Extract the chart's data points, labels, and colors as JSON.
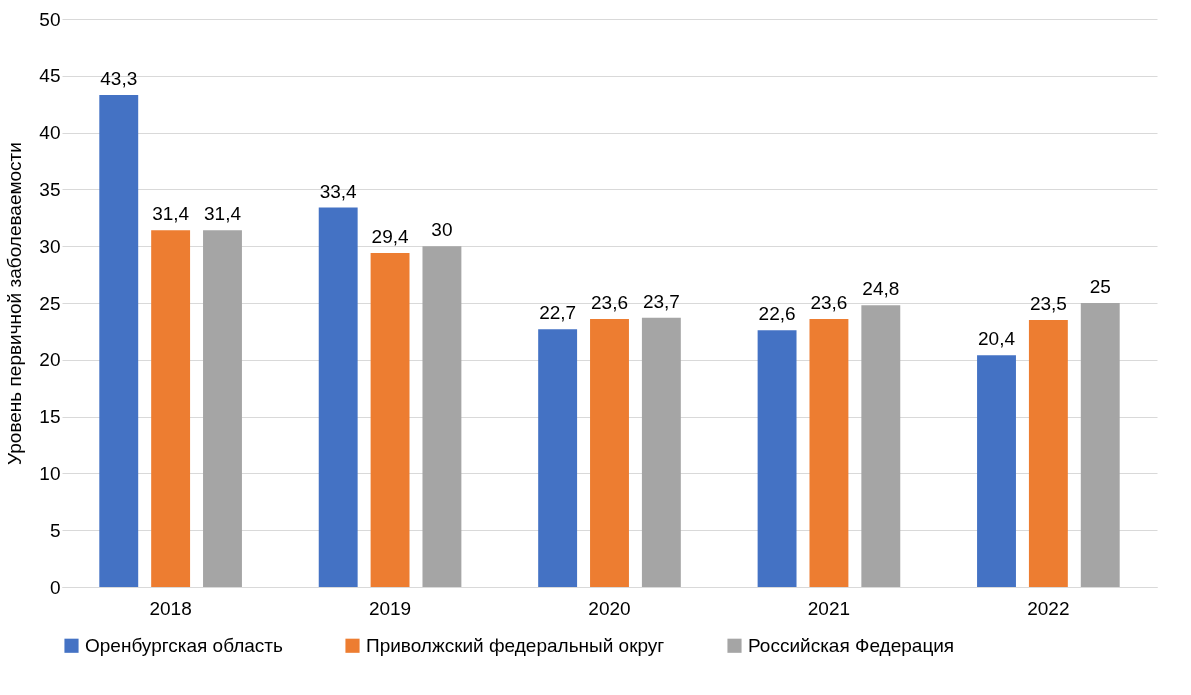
{
  "chart_data": {
    "type": "bar",
    "ylabel": "Уровень первичной  заболеваемости",
    "categories": [
      "2018",
      "2019",
      "2020",
      "2021",
      "2022"
    ],
    "series": [
      {
        "name": "Оренбургская область",
        "color": "#4472c4",
        "values": [
          43.3,
          33.4,
          22.7,
          22.6,
          20.4
        ],
        "value_labels": [
          "43,3",
          "33,4",
          "22,7",
          "22,6",
          "20,4"
        ]
      },
      {
        "name": "Приволжский федеральный округ",
        "color": "#ed7d31",
        "values": [
          31.4,
          29.4,
          23.6,
          23.6,
          23.5
        ],
        "value_labels": [
          "31,4",
          "29,4",
          "23,6",
          "23,6",
          "23,5"
        ]
      },
      {
        "name": "Российская Федерация",
        "color": "#a5a5a5",
        "values": [
          31.4,
          30,
          23.7,
          24.8,
          25
        ],
        "value_labels": [
          "31,4",
          "30",
          "23,7",
          "24,8",
          "25"
        ]
      }
    ],
    "ylim": [
      0,
      50
    ],
    "yticks": [
      0,
      5,
      10,
      15,
      20,
      25,
      30,
      35,
      40,
      45,
      50
    ],
    "grid": "y",
    "legend": "bottom"
  }
}
